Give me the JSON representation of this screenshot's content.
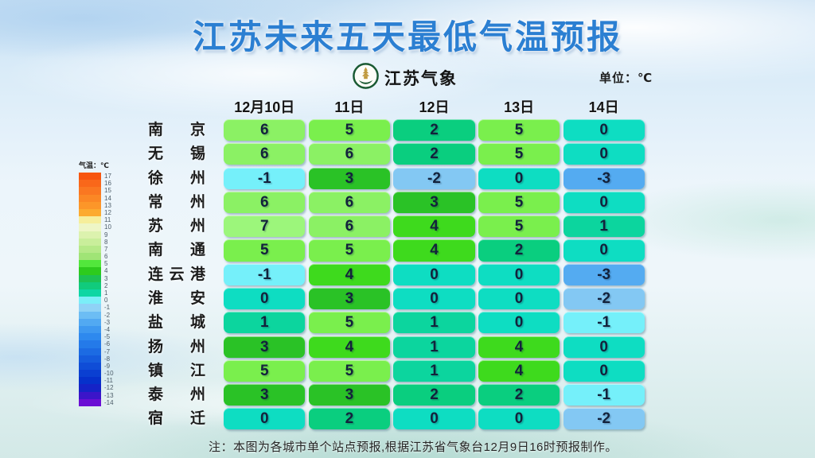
{
  "title": "江苏未来五天最低气温预报",
  "unit_label": "单位：℃",
  "logo": {
    "text": "江苏气象"
  },
  "legend": {
    "title": "气温：℃",
    "entries": [
      {
        "label": "17",
        "color": "#f7560f"
      },
      {
        "label": "16",
        "color": "#f9671a"
      },
      {
        "label": "15",
        "color": "#fa7721"
      },
      {
        "label": "14",
        "color": "#fb8725"
      },
      {
        "label": "13",
        "color": "#fc9629"
      },
      {
        "label": "12",
        "color": "#fcaa2f"
      },
      {
        "label": "11",
        "color": "#f6ee9b"
      },
      {
        "label": "10",
        "color": "#eef6c6"
      },
      {
        "label": "9",
        "color": "#dcf2ae"
      },
      {
        "label": "8",
        "color": "#c9ee9b"
      },
      {
        "label": "7",
        "color": "#b5e988"
      },
      {
        "label": "6",
        "color": "#a0e476"
      },
      {
        "label": "5",
        "color": "#52e73c"
      },
      {
        "label": "4",
        "color": "#2dcb1d"
      },
      {
        "label": "3",
        "color": "#1dc153"
      },
      {
        "label": "2",
        "color": "#11cb7c"
      },
      {
        "label": "1",
        "color": "#0dd6a4"
      },
      {
        "label": "0",
        "color": "#7beef8"
      },
      {
        "label": "-1",
        "color": "#8fd2f6"
      },
      {
        "label": "-2",
        "color": "#6cbdf4"
      },
      {
        "label": "-3",
        "color": "#52a9f2"
      },
      {
        "label": "-4",
        "color": "#3e98f0"
      },
      {
        "label": "-5",
        "color": "#2e89ee"
      },
      {
        "label": "-6",
        "color": "#247ae9"
      },
      {
        "label": "-7",
        "color": "#1c6be3"
      },
      {
        "label": "-8",
        "color": "#155cdd"
      },
      {
        "label": "-9",
        "color": "#0f4dd7"
      },
      {
        "label": "-10",
        "color": "#0a3fd1"
      },
      {
        "label": "-11",
        "color": "#0631cb"
      },
      {
        "label": "-12",
        "color": "#1523c7"
      },
      {
        "label": "-13",
        "color": "#3b15c9"
      },
      {
        "label": "-14",
        "color": "#6a0ed4"
      }
    ]
  },
  "table": {
    "columns": [
      "12月10日",
      "11日",
      "12日",
      "13日",
      "14日"
    ],
    "rows": [
      {
        "city": "南京",
        "values": [
          6,
          5,
          2,
          5,
          0
        ]
      },
      {
        "city": "无锡",
        "values": [
          6,
          6,
          2,
          5,
          0
        ]
      },
      {
        "city": "徐州",
        "values": [
          -1,
          3,
          -2,
          0,
          -3
        ]
      },
      {
        "city": "常州",
        "values": [
          6,
          6,
          3,
          5,
          0
        ]
      },
      {
        "city": "苏州",
        "values": [
          7,
          6,
          4,
          5,
          1
        ]
      },
      {
        "city": "南通",
        "values": [
          5,
          5,
          4,
          2,
          0
        ]
      },
      {
        "city": "连云港",
        "values": [
          -1,
          4,
          0,
          0,
          -3
        ]
      },
      {
        "city": "淮安",
        "values": [
          0,
          3,
          0,
          0,
          -2
        ]
      },
      {
        "city": "盐城",
        "values": [
          1,
          5,
          1,
          0,
          -1
        ]
      },
      {
        "city": "扬州",
        "values": [
          3,
          4,
          1,
          4,
          0
        ]
      },
      {
        "city": "镇江",
        "values": [
          5,
          5,
          1,
          4,
          0
        ]
      },
      {
        "city": "泰州",
        "values": [
          3,
          3,
          2,
          2,
          -1
        ]
      },
      {
        "city": "宿迁",
        "values": [
          0,
          2,
          0,
          0,
          -2
        ]
      }
    ]
  },
  "value_colors": {
    "7": "#9cf67b",
    "6": "#8bf164",
    "5": "#7aef4d",
    "4": "#3eda1d",
    "3": "#2ac226",
    "2": "#0ace7f",
    "1": "#0cd59e",
    "0": "#0eddc2",
    "-1": "#75f0fa",
    "-2": "#83c8f3",
    "-3": "#54abf1"
  },
  "note": "注：本图为各城市单个站点预报,根据江苏省气象台12月9日16时预报制作。",
  "chart_data": {
    "type": "heatmap",
    "title": "江苏未来五天最低气温预报",
    "unit": "℃",
    "x_categories": [
      "12月10日",
      "11日",
      "12日",
      "13日",
      "14日"
    ],
    "y_categories": [
      "南京",
      "无锡",
      "徐州",
      "常州",
      "苏州",
      "南通",
      "连云港",
      "淮安",
      "盐城",
      "扬州",
      "镇江",
      "泰州",
      "宿迁"
    ],
    "values": [
      [
        6,
        5,
        2,
        5,
        0
      ],
      [
        6,
        6,
        2,
        5,
        0
      ],
      [
        -1,
        3,
        -2,
        0,
        -3
      ],
      [
        6,
        6,
        3,
        5,
        0
      ],
      [
        7,
        6,
        4,
        5,
        1
      ],
      [
        5,
        5,
        4,
        2,
        0
      ],
      [
        -1,
        4,
        0,
        0,
        -3
      ],
      [
        0,
        3,
        0,
        0,
        -2
      ],
      [
        1,
        5,
        1,
        0,
        -1
      ],
      [
        3,
        4,
        1,
        4,
        0
      ],
      [
        5,
        5,
        1,
        4,
        0
      ],
      [
        3,
        3,
        2,
        2,
        -1
      ],
      [
        0,
        2,
        0,
        0,
        -2
      ]
    ],
    "colorbar": {
      "label": "气温：℃",
      "min": -14,
      "max": 17
    },
    "source_note": "注：本图为各城市单个站点预报,根据江苏省气象台12月9日16时预报制作。"
  }
}
